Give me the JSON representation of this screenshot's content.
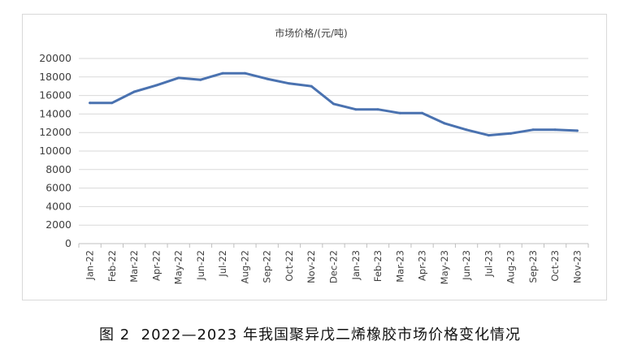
{
  "chart_data": {
    "type": "line",
    "title": "市场价格/(元/吨)",
    "xlabel": "",
    "ylabel": "",
    "categories": [
      "Jan-22",
      "Feb-22",
      "Mar-22",
      "Apr-22",
      "May-22",
      "Jun-22",
      "Jul-22",
      "Aug-22",
      "Sep-22",
      "Oct-22",
      "Nov-22",
      "Dec-22",
      "Jan-23",
      "Feb-23",
      "Mar-23",
      "Apr-23",
      "May-23",
      "Jun-23",
      "Jul-23",
      "Aug-23",
      "Sep-23",
      "Oct-23",
      "Nov-23"
    ],
    "series": [
      {
        "values": [
          15200,
          15200,
          16400,
          17100,
          17900,
          17700,
          18400,
          18400,
          17800,
          17300,
          17000,
          15100,
          14500,
          14500,
          14100,
          14100,
          13000,
          12300,
          11700,
          11900,
          12300,
          12300,
          12200
        ],
        "color": "#4a72b0"
      }
    ],
    "ylim": [
      0,
      20000
    ],
    "yticks": [
      0,
      2000,
      4000,
      6000,
      8000,
      10000,
      12000,
      14000,
      16000,
      18000,
      20000
    ],
    "grid": true,
    "legend": "none"
  },
  "caption": {
    "figure_label": "图 2",
    "text": "2022—2023 年我国聚异戊二烯橡胶市场价格变化情况"
  }
}
